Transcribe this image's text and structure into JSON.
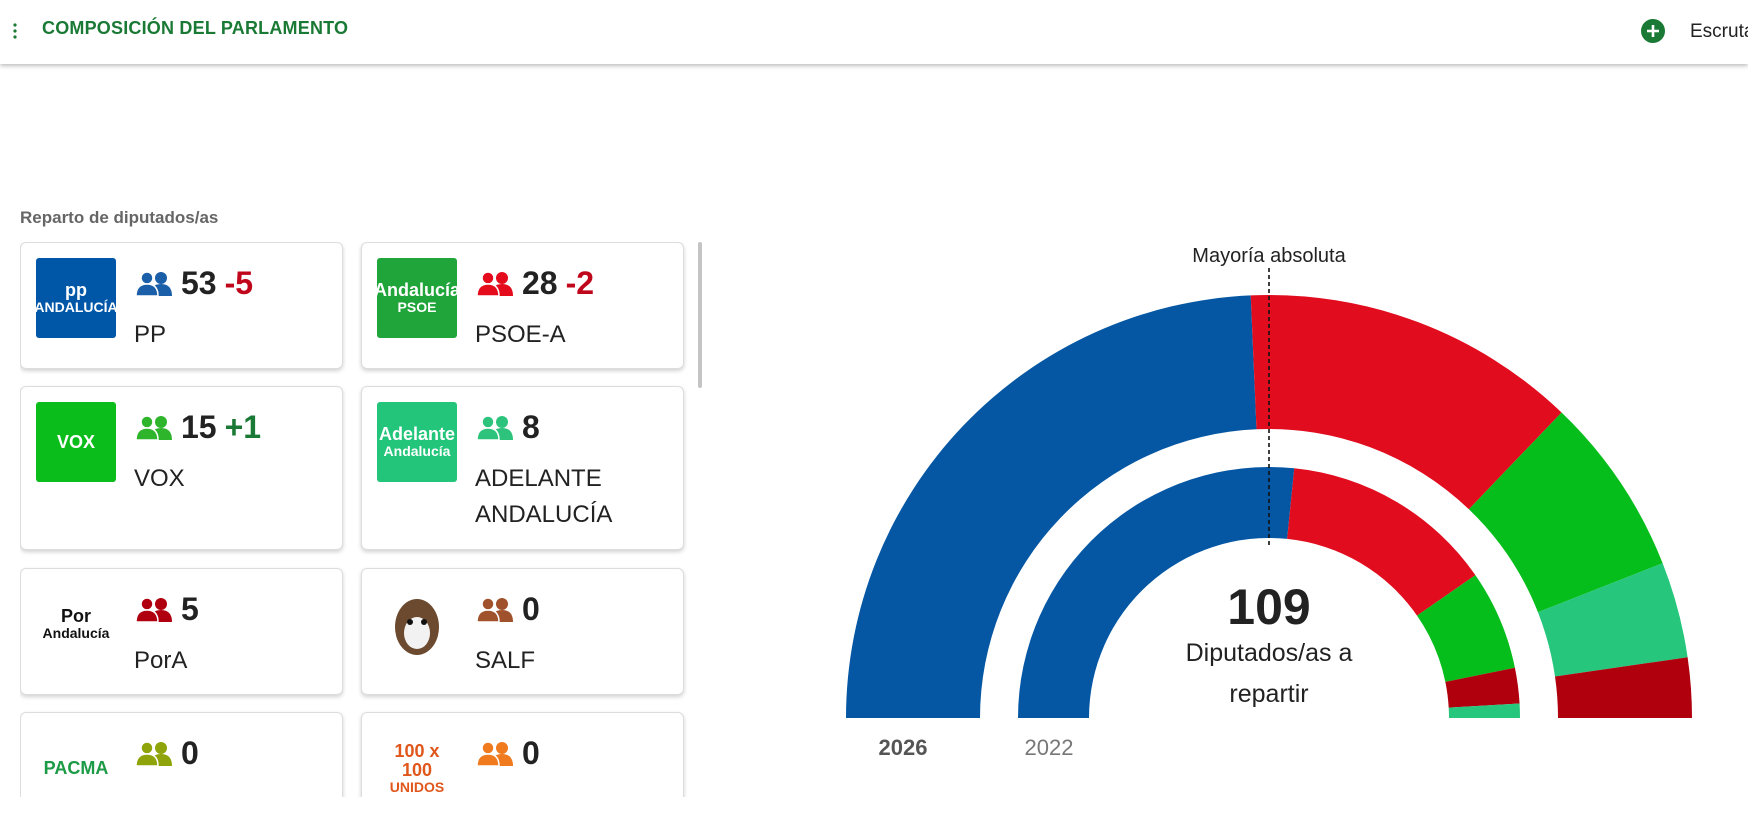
{
  "header": {
    "title": "COMPOSICIÓN DEL PARLAMENTO",
    "link": "Escruta"
  },
  "section_label": "Reparto de diputados/as",
  "parties": [
    {
      "name": "PP",
      "seats": 53,
      "change": "-5",
      "icon_color": "#1b5fa8",
      "logo_bg": "#0057a8",
      "logo_fg": "#ffffff",
      "logo": [
        "pp",
        "ANDALUCÍA"
      ]
    },
    {
      "name": "PSOE-A",
      "seats": 28,
      "change": "-2",
      "icon_color": "#e30b1c",
      "logo_bg": "#1fa53a",
      "logo_fg": "#ffffff",
      "logo": [
        "Andalucía",
        "PSOE"
      ]
    },
    {
      "name": "VOX",
      "seats": 15,
      "change": "+1",
      "icon_color": "#2fb52b",
      "logo_bg": "#0bbd1b",
      "logo_fg": "#ffffff",
      "logo": [
        "VOX"
      ]
    },
    {
      "name": "ADELANTE ANDALUCÍA",
      "seats": 8,
      "icon_color": "#2ec37c",
      "logo_bg": "#23c57a",
      "logo_fg": "#ffffff",
      "logo": [
        "Adelante",
        "Andalucía"
      ]
    },
    {
      "name": "PorA",
      "seats": 5,
      "icon_color": "#b0000f",
      "logo_bg": "#ffffff",
      "logo_fg": "#111111",
      "logo": [
        "Por",
        "Andalucía"
      ]
    },
    {
      "name": "SALF",
      "seats": 0,
      "icon_color": "#a0522d",
      "logo_bg": "#ffffff",
      "logo_fg": "#3a2a1a"
    },
    {
      "seats": 0,
      "icon_color": "#8fa40a",
      "logo_bg": "#ffffff",
      "logo_fg": "#1c9a45",
      "logo": [
        "PACMA"
      ]
    },
    {
      "seats": 0,
      "icon_color": "#f07a1e",
      "logo_bg": "#ffffff",
      "logo_fg": "#e0561b",
      "logo": [
        "100 x 100",
        "UNIDOS"
      ]
    }
  ],
  "chart_data": {
    "type": "hemicycle",
    "annotation": "Mayoría absoluta",
    "total": 109,
    "total_label": "Diputados/as a repartir",
    "series": [
      {
        "name": "2026",
        "values": [
          53,
          28,
          15,
          8,
          5
        ],
        "colors": [
          "#0557a4",
          "#e10c1e",
          "#05be1b",
          "#26c77c",
          "#b0000e"
        ]
      },
      {
        "name": "2022",
        "values": [
          58,
          30,
          14,
          5,
          2
        ],
        "colors": [
          "#0557a4",
          "#e10c1e",
          "#05be1b",
          "#b0000e",
          "#26c77c"
        ]
      }
    ]
  }
}
